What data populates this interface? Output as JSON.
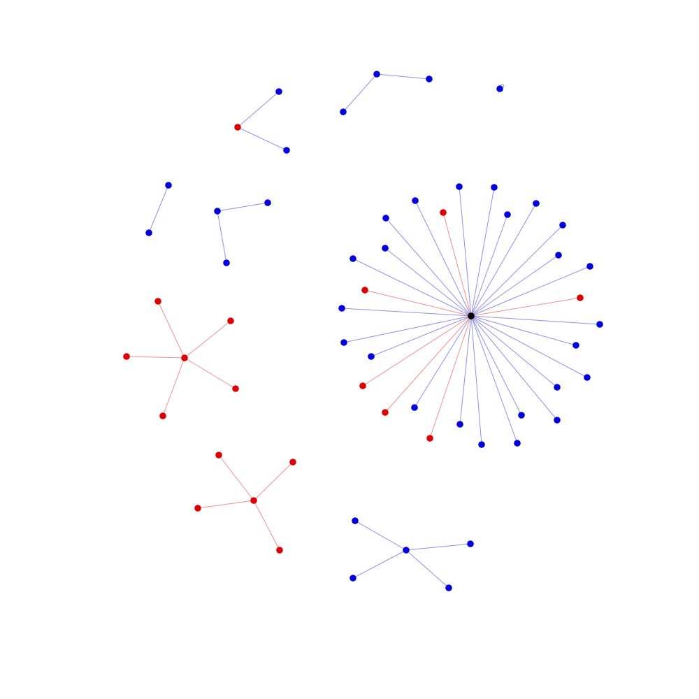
{
  "colors": {
    "background": "#ffffff",
    "blue": "#0000dd",
    "red": "#dd0000",
    "black": "#000000",
    "edge_blue": "#8f8fe8",
    "edge_red": "#ee8f8f"
  },
  "graph": {
    "type": "network",
    "components": [
      {
        "id": "hub-star",
        "nodes": [
          {
            "id": "h0",
            "color": "black"
          },
          {
            "id": "h1",
            "color": "blue"
          },
          {
            "id": "h2",
            "color": "blue"
          },
          {
            "id": "h3",
            "color": "blue"
          },
          {
            "id": "h4",
            "color": "red"
          },
          {
            "id": "h5",
            "color": "blue"
          },
          {
            "id": "h6",
            "color": "blue"
          },
          {
            "id": "h7",
            "color": "blue"
          },
          {
            "id": "h8",
            "color": "blue"
          },
          {
            "id": "h9",
            "color": "blue"
          },
          {
            "id": "h10",
            "color": "blue"
          },
          {
            "id": "h11",
            "color": "blue"
          },
          {
            "id": "h12",
            "color": "red"
          },
          {
            "id": "h13",
            "color": "blue"
          },
          {
            "id": "h14",
            "color": "red"
          },
          {
            "id": "h15",
            "color": "blue"
          },
          {
            "id": "h16",
            "color": "blue"
          },
          {
            "id": "h17",
            "color": "blue"
          },
          {
            "id": "h18",
            "color": "blue"
          },
          {
            "id": "h19",
            "color": "blue"
          },
          {
            "id": "h20",
            "color": "blue"
          },
          {
            "id": "h21",
            "color": "blue"
          },
          {
            "id": "h22",
            "color": "blue"
          },
          {
            "id": "h23",
            "color": "blue"
          },
          {
            "id": "h24",
            "color": "blue"
          },
          {
            "id": "h25",
            "color": "red"
          },
          {
            "id": "h26",
            "color": "red"
          },
          {
            "id": "h27",
            "color": "blue"
          },
          {
            "id": "h28",
            "color": "red"
          },
          {
            "id": "h29",
            "color": "blue"
          },
          {
            "id": "h30",
            "color": "blue"
          }
        ],
        "edges": [
          [
            "h0",
            "h1",
            "blue"
          ],
          [
            "h0",
            "h2",
            "blue"
          ],
          [
            "h0",
            "h3",
            "blue"
          ],
          [
            "h0",
            "h4",
            "red"
          ],
          [
            "h0",
            "h5",
            "blue"
          ],
          [
            "h0",
            "h6",
            "blue"
          ],
          [
            "h0",
            "h7",
            "blue"
          ],
          [
            "h0",
            "h8",
            "blue"
          ],
          [
            "h0",
            "h9",
            "blue"
          ],
          [
            "h0",
            "h10",
            "blue"
          ],
          [
            "h0",
            "h11",
            "blue"
          ],
          [
            "h0",
            "h12",
            "red"
          ],
          [
            "h0",
            "h13",
            "blue"
          ],
          [
            "h0",
            "h14",
            "red"
          ],
          [
            "h0",
            "h15",
            "blue"
          ],
          [
            "h0",
            "h16",
            "blue"
          ],
          [
            "h0",
            "h17",
            "blue"
          ],
          [
            "h0",
            "h18",
            "blue"
          ],
          [
            "h0",
            "h19",
            "blue"
          ],
          [
            "h0",
            "h20",
            "blue"
          ],
          [
            "h0",
            "h21",
            "blue"
          ],
          [
            "h0",
            "h22",
            "blue"
          ],
          [
            "h0",
            "h23",
            "blue"
          ],
          [
            "h0",
            "h24",
            "blue"
          ],
          [
            "h0",
            "h25",
            "red"
          ],
          [
            "h0",
            "h26",
            "red"
          ],
          [
            "h0",
            "h27",
            "blue"
          ],
          [
            "h0",
            "h28",
            "red"
          ],
          [
            "h0",
            "h29",
            "blue"
          ],
          [
            "h0",
            "h30",
            "blue"
          ]
        ]
      },
      {
        "id": "red-star-1",
        "nodes": [
          {
            "id": "r0",
            "color": "red"
          },
          {
            "id": "r1",
            "color": "red"
          },
          {
            "id": "r2",
            "color": "red"
          },
          {
            "id": "r3",
            "color": "red"
          },
          {
            "id": "r4",
            "color": "red"
          },
          {
            "id": "r5",
            "color": "red"
          }
        ],
        "edges": [
          [
            "r0",
            "r1",
            "red"
          ],
          [
            "r0",
            "r2",
            "red"
          ],
          [
            "r0",
            "r3",
            "red"
          ],
          [
            "r0",
            "r4",
            "red"
          ],
          [
            "r0",
            "r5",
            "red"
          ]
        ]
      },
      {
        "id": "red-star-2",
        "nodes": [
          {
            "id": "s0",
            "color": "red"
          },
          {
            "id": "s1",
            "color": "red"
          },
          {
            "id": "s2",
            "color": "red"
          },
          {
            "id": "s3",
            "color": "red"
          },
          {
            "id": "s4",
            "color": "red"
          }
        ],
        "edges": [
          [
            "s0",
            "s1",
            "red"
          ],
          [
            "s0",
            "s2",
            "red"
          ],
          [
            "s0",
            "s3",
            "red"
          ],
          [
            "s0",
            "s4",
            "red"
          ]
        ]
      },
      {
        "id": "blue-star",
        "nodes": [
          {
            "id": "b0",
            "color": "blue"
          },
          {
            "id": "b1",
            "color": "blue"
          },
          {
            "id": "b2",
            "color": "blue"
          },
          {
            "id": "b3",
            "color": "blue"
          },
          {
            "id": "b4",
            "color": "blue"
          }
        ],
        "edges": [
          [
            "b0",
            "b1",
            "blue"
          ],
          [
            "b0",
            "b2",
            "blue"
          ],
          [
            "b0",
            "b3",
            "blue"
          ],
          [
            "b0",
            "b4",
            "blue"
          ]
        ]
      },
      {
        "id": "path-red-center",
        "nodes": [
          {
            "id": "p0",
            "color": "red"
          },
          {
            "id": "p1",
            "color": "blue"
          },
          {
            "id": "p2",
            "color": "blue"
          }
        ],
        "edges": [
          [
            "p0",
            "p1",
            "blue"
          ],
          [
            "p0",
            "p2",
            "blue"
          ]
        ]
      },
      {
        "id": "path-top",
        "nodes": [
          {
            "id": "t0",
            "color": "blue"
          },
          {
            "id": "t1",
            "color": "blue"
          },
          {
            "id": "t2",
            "color": "blue"
          }
        ],
        "edges": [
          [
            "t0",
            "t1",
            "blue"
          ],
          [
            "t1",
            "t2",
            "blue"
          ]
        ]
      },
      {
        "id": "self-loop",
        "nodes": [
          {
            "id": "l0",
            "color": "blue"
          }
        ],
        "edges": [
          [
            "l0",
            "l0",
            "blue"
          ]
        ]
      },
      {
        "id": "pair",
        "nodes": [
          {
            "id": "q0",
            "color": "blue"
          },
          {
            "id": "q1",
            "color": "blue"
          }
        ],
        "edges": [
          [
            "q0",
            "q1",
            "blue"
          ]
        ]
      },
      {
        "id": "path-left",
        "nodes": [
          {
            "id": "u0",
            "color": "blue"
          },
          {
            "id": "u1",
            "color": "blue"
          },
          {
            "id": "u2",
            "color": "blue"
          }
        ],
        "edges": [
          [
            "u0",
            "u1",
            "blue"
          ],
          [
            "u0",
            "u2",
            "blue"
          ]
        ]
      }
    ]
  }
}
